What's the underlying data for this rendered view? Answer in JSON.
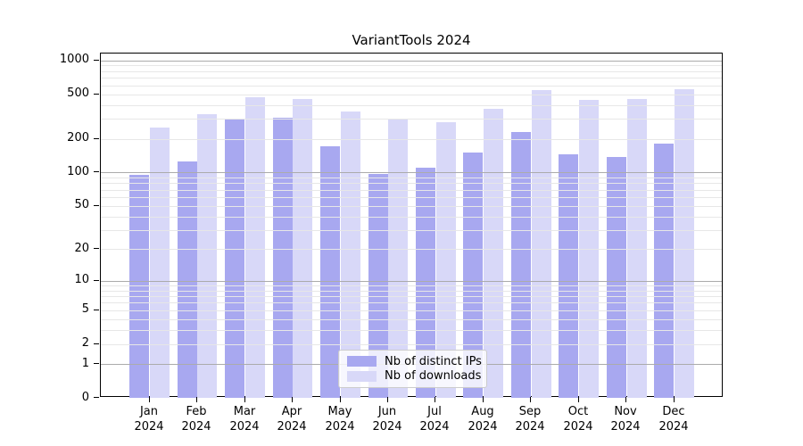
{
  "title": "VariantTools 2024",
  "chart_data": {
    "type": "bar",
    "title": "VariantTools 2024",
    "categories": [
      "Jan",
      "Feb",
      "Mar",
      "Apr",
      "May",
      "Jun",
      "Jul",
      "Aug",
      "Sep",
      "Oct",
      "Nov",
      "Dec"
    ],
    "x_year": "2024",
    "series": [
      {
        "name": "Nb of distinct IPs",
        "color": "#a8a8f0",
        "values": [
          95,
          125,
          300,
          310,
          170,
          97,
          110,
          150,
          230,
          145,
          138,
          180
        ]
      },
      {
        "name": "Nb of downloads",
        "color": "#d8d8f8",
        "values": [
          250,
          330,
          470,
          450,
          350,
          295,
          280,
          370,
          540,
          445,
          455,
          550
        ]
      }
    ],
    "yscale": "log1p",
    "ylim": [
      0,
      1150
    ],
    "y_ticks": [
      0,
      1,
      2,
      5,
      10,
      20,
      50,
      100,
      200,
      500,
      1000
    ],
    "y_tick_labels": [
      "0",
      "1",
      "2",
      "5",
      "10",
      "20",
      "50",
      "100",
      "200",
      "500",
      "1000"
    ],
    "minor_gridlines": [
      2,
      3,
      4,
      5,
      6,
      7,
      8,
      9,
      20,
      30,
      40,
      50,
      60,
      70,
      80,
      90,
      200,
      300,
      400,
      500,
      600,
      700,
      800,
      900
    ],
    "major_gridlines": [
      1,
      10,
      100,
      1000
    ],
    "grid": true,
    "legend_position": "lower center",
    "colors": {
      "bar_dark": "#a8a8f0",
      "bar_light": "#d8d8f8",
      "grid_minor": "#e7e7e7",
      "grid_major": "#ababab",
      "spine": "#000000",
      "legend_border": "#cccccc",
      "legend_bg": "rgba(255,255,255,0.8)"
    }
  }
}
